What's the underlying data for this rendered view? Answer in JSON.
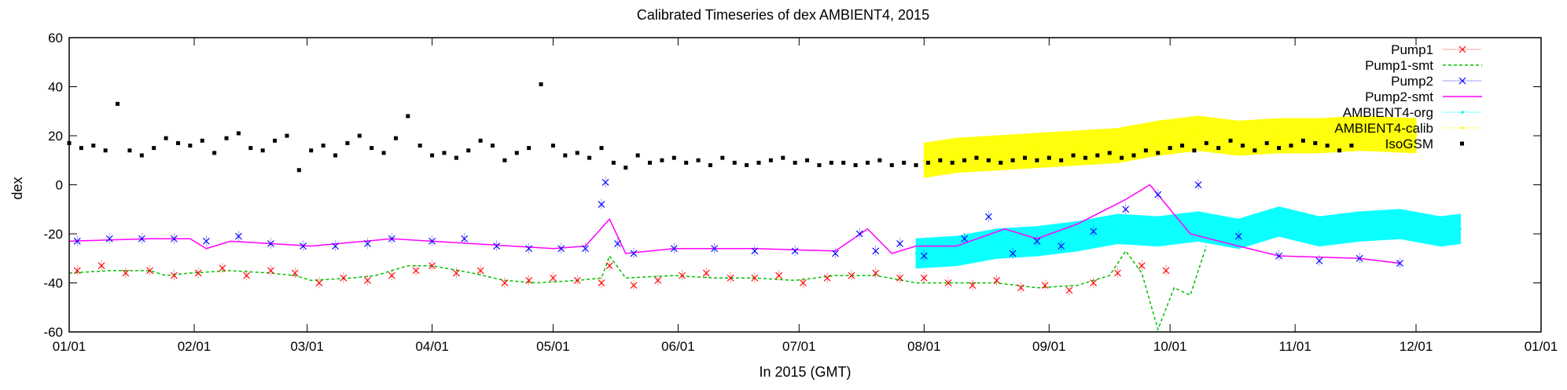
{
  "chart_data": {
    "type": "line",
    "title": "Calibrated Timeseries of dex AMBIENT4, 2015",
    "xlabel": "In 2015 (GMT)",
    "ylabel": "dex",
    "x_tick_labels": [
      "01/01",
      "02/01",
      "03/01",
      "04/01",
      "05/01",
      "06/01",
      "07/01",
      "08/01",
      "09/01",
      "10/01",
      "11/01",
      "12/01",
      "01/01"
    ],
    "x_tick_days": [
      0,
      31,
      59,
      90,
      120,
      151,
      181,
      212,
      243,
      273,
      304,
      334,
      365
    ],
    "xlim_days": [
      0,
      365
    ],
    "ylim": [
      -60,
      60
    ],
    "y_ticks": [
      60,
      40,
      20,
      0,
      -20,
      -40,
      -60
    ],
    "grid": false,
    "legend_position": "top-right",
    "series": [
      {
        "name": "Pump1",
        "color": "#ff0000",
        "style": "markers-with-errorbars",
        "marker": "x",
        "points": [
          [
            2,
            -35
          ],
          [
            8,
            -33
          ],
          [
            14,
            -36
          ],
          [
            20,
            -35
          ],
          [
            26,
            -37
          ],
          [
            32,
            -36
          ],
          [
            38,
            -34
          ],
          [
            44,
            -37
          ],
          [
            50,
            -35
          ],
          [
            56,
            -36
          ],
          [
            62,
            -40
          ],
          [
            68,
            -38
          ],
          [
            74,
            -39
          ],
          [
            80,
            -37
          ],
          [
            86,
            -35
          ],
          [
            90,
            -33
          ],
          [
            96,
            -36
          ],
          [
            102,
            -35
          ],
          [
            108,
            -40
          ],
          [
            114,
            -39
          ],
          [
            120,
            -38
          ],
          [
            126,
            -39
          ],
          [
            132,
            -40
          ],
          [
            134,
            -33
          ],
          [
            140,
            -41
          ],
          [
            146,
            -39
          ],
          [
            152,
            -37
          ],
          [
            158,
            -36
          ],
          [
            164,
            -38
          ],
          [
            170,
            -38
          ],
          [
            176,
            -37
          ],
          [
            182,
            -40
          ],
          [
            188,
            -38
          ],
          [
            194,
            -37
          ],
          [
            200,
            -36
          ],
          [
            206,
            -38
          ],
          [
            212,
            -38
          ],
          [
            218,
            -40
          ],
          [
            224,
            -41
          ],
          [
            230,
            -39
          ],
          [
            236,
            -42
          ],
          [
            242,
            -41
          ],
          [
            248,
            -43
          ],
          [
            254,
            -40
          ],
          [
            260,
            -36
          ],
          [
            266,
            -33
          ],
          [
            272,
            -35
          ]
        ]
      },
      {
        "name": "Pump1-smt",
        "color": "#00c000",
        "style": "dashed-line",
        "points": [
          [
            0,
            -36
          ],
          [
            10,
            -35
          ],
          [
            20,
            -35
          ],
          [
            24,
            -37
          ],
          [
            30,
            -36
          ],
          [
            40,
            -35
          ],
          [
            50,
            -36
          ],
          [
            56,
            -37
          ],
          [
            60,
            -39
          ],
          [
            70,
            -38
          ],
          [
            76,
            -37
          ],
          [
            84,
            -33
          ],
          [
            90,
            -33
          ],
          [
            100,
            -36
          ],
          [
            108,
            -39
          ],
          [
            116,
            -40
          ],
          [
            126,
            -39
          ],
          [
            132,
            -38
          ],
          [
            134,
            -29
          ],
          [
            138,
            -38
          ],
          [
            150,
            -37
          ],
          [
            160,
            -38
          ],
          [
            170,
            -38
          ],
          [
            180,
            -39
          ],
          [
            190,
            -37
          ],
          [
            200,
            -37
          ],
          [
            210,
            -40
          ],
          [
            220,
            -40
          ],
          [
            230,
            -40
          ],
          [
            240,
            -42
          ],
          [
            250,
            -41
          ],
          [
            258,
            -37
          ],
          [
            262,
            -27
          ],
          [
            266,
            -36
          ],
          [
            270,
            -59
          ],
          [
            274,
            -42
          ],
          [
            278,
            -45
          ],
          [
            282,
            -25
          ]
        ]
      },
      {
        "name": "Pump2",
        "color": "#0000ff",
        "style": "markers-with-errorbars",
        "marker": "x",
        "points": [
          [
            2,
            -23
          ],
          [
            10,
            -22
          ],
          [
            18,
            -22
          ],
          [
            26,
            -22
          ],
          [
            34,
            -23
          ],
          [
            42,
            -21
          ],
          [
            50,
            -24
          ],
          [
            58,
            -25
          ],
          [
            66,
            -25
          ],
          [
            74,
            -24
          ],
          [
            80,
            -22
          ],
          [
            90,
            -23
          ],
          [
            98,
            -22
          ],
          [
            106,
            -25
          ],
          [
            114,
            -26
          ],
          [
            122,
            -26
          ],
          [
            128,
            -26
          ],
          [
            132,
            -8
          ],
          [
            133,
            1
          ],
          [
            136,
            -24
          ],
          [
            140,
            -28
          ],
          [
            150,
            -26
          ],
          [
            160,
            -26
          ],
          [
            170,
            -27
          ],
          [
            180,
            -27
          ],
          [
            190,
            -28
          ],
          [
            196,
            -20
          ],
          [
            200,
            -27
          ],
          [
            206,
            -24
          ],
          [
            212,
            -29
          ],
          [
            222,
            -22
          ],
          [
            228,
            -13
          ],
          [
            234,
            -28
          ],
          [
            240,
            -23
          ],
          [
            246,
            -25
          ],
          [
            254,
            -19
          ],
          [
            262,
            -10
          ],
          [
            270,
            -4
          ],
          [
            280,
            0
          ],
          [
            290,
            -21
          ],
          [
            300,
            -29
          ],
          [
            310,
            -31
          ],
          [
            320,
            -30
          ],
          [
            330,
            -32
          ]
        ]
      },
      {
        "name": "Pump2-smt",
        "color": "#ff00ff",
        "style": "line",
        "points": [
          [
            0,
            -23
          ],
          [
            20,
            -22
          ],
          [
            30,
            -22
          ],
          [
            34,
            -26
          ],
          [
            40,
            -23
          ],
          [
            60,
            -25
          ],
          [
            80,
            -22
          ],
          [
            100,
            -24
          ],
          [
            120,
            -26
          ],
          [
            128,
            -25
          ],
          [
            134,
            -14
          ],
          [
            138,
            -28
          ],
          [
            150,
            -26
          ],
          [
            170,
            -26
          ],
          [
            190,
            -27
          ],
          [
            198,
            -18
          ],
          [
            204,
            -28
          ],
          [
            210,
            -25
          ],
          [
            220,
            -25
          ],
          [
            232,
            -18
          ],
          [
            240,
            -22
          ],
          [
            250,
            -16
          ],
          [
            262,
            -6
          ],
          [
            268,
            0
          ],
          [
            272,
            -8
          ],
          [
            278,
            -20
          ],
          [
            290,
            -25
          ],
          [
            300,
            -29
          ],
          [
            320,
            -30
          ],
          [
            330,
            -32
          ]
        ]
      },
      {
        "name": "AMBIENT4-org",
        "color": "#00ffff",
        "style": "dense-band",
        "points": [
          [
            210,
            -28
          ],
          [
            220,
            -27
          ],
          [
            230,
            -24
          ],
          [
            240,
            -23
          ],
          [
            250,
            -21
          ],
          [
            260,
            -18
          ],
          [
            270,
            -19
          ],
          [
            280,
            -17
          ],
          [
            290,
            -20
          ],
          [
            300,
            -15
          ],
          [
            310,
            -19
          ],
          [
            320,
            -17
          ],
          [
            330,
            -16
          ],
          [
            340,
            -19
          ],
          [
            345,
            -18
          ]
        ],
        "band_width": 6
      },
      {
        "name": "AMBIENT4-calib",
        "color": "#ffff00",
        "style": "dense-band",
        "points": [
          [
            212,
            10
          ],
          [
            220,
            12
          ],
          [
            230,
            13
          ],
          [
            240,
            14
          ],
          [
            250,
            15
          ],
          [
            260,
            16
          ],
          [
            270,
            19
          ],
          [
            280,
            21
          ],
          [
            290,
            19
          ],
          [
            300,
            20
          ],
          [
            310,
            20
          ],
          [
            320,
            21
          ],
          [
            334,
            20
          ]
        ],
        "band_width": 7
      },
      {
        "name": "IsoGSM",
        "color": "#000000",
        "style": "points",
        "marker": "square",
        "points": [
          [
            0,
            17
          ],
          [
            3,
            15
          ],
          [
            6,
            16
          ],
          [
            9,
            14
          ],
          [
            12,
            33
          ],
          [
            15,
            14
          ],
          [
            18,
            12
          ],
          [
            21,
            15
          ],
          [
            24,
            19
          ],
          [
            27,
            17
          ],
          [
            30,
            16
          ],
          [
            33,
            18
          ],
          [
            36,
            13
          ],
          [
            39,
            19
          ],
          [
            42,
            21
          ],
          [
            45,
            15
          ],
          [
            48,
            14
          ],
          [
            51,
            18
          ],
          [
            54,
            20
          ],
          [
            57,
            6
          ],
          [
            60,
            14
          ],
          [
            63,
            16
          ],
          [
            66,
            12
          ],
          [
            69,
            17
          ],
          [
            72,
            20
          ],
          [
            75,
            15
          ],
          [
            78,
            13
          ],
          [
            81,
            19
          ],
          [
            84,
            28
          ],
          [
            87,
            16
          ],
          [
            90,
            12
          ],
          [
            93,
            13
          ],
          [
            96,
            11
          ],
          [
            99,
            14
          ],
          [
            102,
            18
          ],
          [
            105,
            16
          ],
          [
            108,
            10
          ],
          [
            111,
            13
          ],
          [
            114,
            15
          ],
          [
            117,
            41
          ],
          [
            120,
            16
          ],
          [
            123,
            12
          ],
          [
            126,
            13
          ],
          [
            129,
            11
          ],
          [
            132,
            15
          ],
          [
            135,
            9
          ],
          [
            138,
            7
          ],
          [
            141,
            12
          ],
          [
            144,
            9
          ],
          [
            147,
            10
          ],
          [
            150,
            11
          ],
          [
            153,
            9
          ],
          [
            156,
            10
          ],
          [
            159,
            8
          ],
          [
            162,
            11
          ],
          [
            165,
            9
          ],
          [
            168,
            8
          ],
          [
            171,
            9
          ],
          [
            174,
            10
          ],
          [
            177,
            11
          ],
          [
            180,
            9
          ],
          [
            183,
            10
          ],
          [
            186,
            8
          ],
          [
            189,
            9
          ],
          [
            192,
            9
          ],
          [
            195,
            8
          ],
          [
            198,
            9
          ],
          [
            201,
            10
          ],
          [
            204,
            8
          ],
          [
            207,
            9
          ],
          [
            210,
            8
          ],
          [
            213,
            9
          ],
          [
            216,
            10
          ],
          [
            219,
            9
          ],
          [
            222,
            10
          ],
          [
            225,
            11
          ],
          [
            228,
            10
          ],
          [
            231,
            9
          ],
          [
            234,
            10
          ],
          [
            237,
            11
          ],
          [
            240,
            10
          ],
          [
            243,
            11
          ],
          [
            246,
            10
          ],
          [
            249,
            12
          ],
          [
            252,
            11
          ],
          [
            255,
            12
          ],
          [
            258,
            13
          ],
          [
            261,
            11
          ],
          [
            264,
            12
          ],
          [
            267,
            14
          ],
          [
            270,
            13
          ],
          [
            273,
            15
          ],
          [
            276,
            16
          ],
          [
            279,
            14
          ],
          [
            282,
            17
          ],
          [
            285,
            15
          ],
          [
            288,
            18
          ],
          [
            291,
            16
          ],
          [
            294,
            14
          ],
          [
            297,
            17
          ],
          [
            300,
            15
          ],
          [
            303,
            16
          ],
          [
            306,
            18
          ],
          [
            309,
            17
          ],
          [
            312,
            16
          ],
          [
            315,
            14
          ],
          [
            318,
            16
          ]
        ]
      }
    ]
  }
}
